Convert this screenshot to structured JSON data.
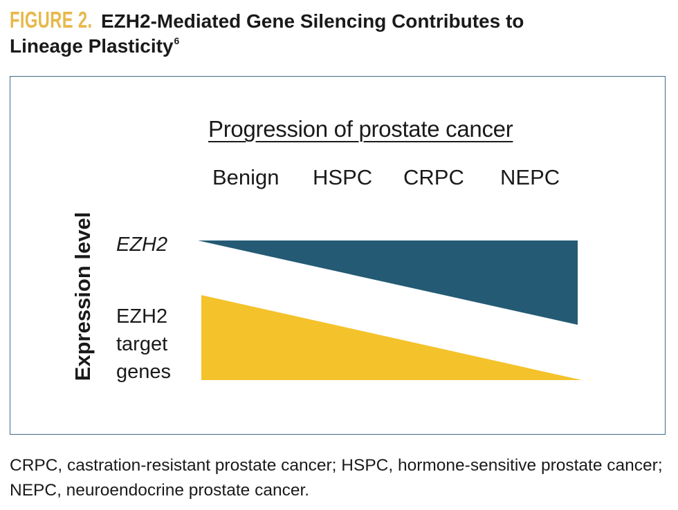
{
  "figure": {
    "label": "FIGURE 2.",
    "title": "EZH2-Mediated Gene Silencing Contributes to",
    "title_line2": "Lineage Plasticity",
    "title_superscript": "6"
  },
  "diagram": {
    "heading": "Progression of prostate cancer",
    "stages": [
      "Benign",
      "HSPC",
      "CRPC",
      "NEPC"
    ],
    "y_axis_label": "Expression level",
    "ezh2_label": "EZH2",
    "target_label_lines": [
      "EZH2",
      "target",
      "genes"
    ],
    "colors": {
      "ezh2": "#245a74",
      "targets": "#f4c22a",
      "border": "#3f6a86"
    },
    "trends": [
      {
        "name": "EZH2",
        "direction": "increasing",
        "start_level": 0.0,
        "end_level": 1.0
      },
      {
        "name": "EZH2 target genes",
        "direction": "decreasing",
        "start_level": 1.0,
        "end_level": 0.0
      }
    ]
  },
  "footnote": "CRPC, castration-resistant prostate cancer; HSPC, hormone-sensitive prostate cancer; NEPC, neuroendocrine prostate cancer."
}
